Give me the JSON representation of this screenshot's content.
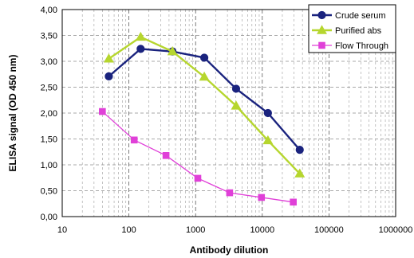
{
  "chart_data": {
    "type": "line",
    "xlabel": "Antibody dilution",
    "ylabel": "ELISA signal (OD 450 nm)",
    "xscale": "log",
    "xlim": [
      10,
      1000000
    ],
    "ylim": [
      0,
      4
    ],
    "xticks": [
      10,
      100,
      1000,
      10000,
      100000,
      1000000
    ],
    "xtick_labels": [
      "10",
      "100",
      "1000",
      "10000",
      "100000",
      "1000000"
    ],
    "yticks": [
      0,
      0.5,
      1,
      1.5,
      2,
      2.5,
      3,
      3.5,
      4
    ],
    "ytick_labels": [
      "0,00",
      "0,50",
      "1,00",
      "1,50",
      "2,00",
      "2,50",
      "3,00",
      "3,50",
      "4,00"
    ],
    "grid": {
      "x_major": true,
      "x_minor": true,
      "y_major": true,
      "style": "dashed"
    },
    "legend_position": "top-right",
    "series": [
      {
        "name": "Crude serum",
        "color": "#1a237e",
        "marker": "circle",
        "x": [
          50,
          150,
          450,
          1350,
          4050,
          12150,
          36450
        ],
        "y": [
          2.71,
          3.24,
          3.19,
          3.07,
          2.47,
          2.0,
          1.29
        ]
      },
      {
        "name": "Purified abs",
        "color": "#b6d62e",
        "marker": "triangle",
        "x": [
          50,
          150,
          450,
          1350,
          4050,
          12150,
          36450
        ],
        "y": [
          3.05,
          3.47,
          3.19,
          2.7,
          2.14,
          1.47,
          0.83
        ]
      },
      {
        "name": "Flow Through",
        "color": "#e040d8",
        "marker": "square",
        "x": [
          40,
          120,
          360,
          1080,
          3240,
          9720,
          29160
        ],
        "y": [
          2.03,
          1.48,
          1.18,
          0.74,
          0.46,
          0.37,
          0.28
        ]
      }
    ]
  }
}
